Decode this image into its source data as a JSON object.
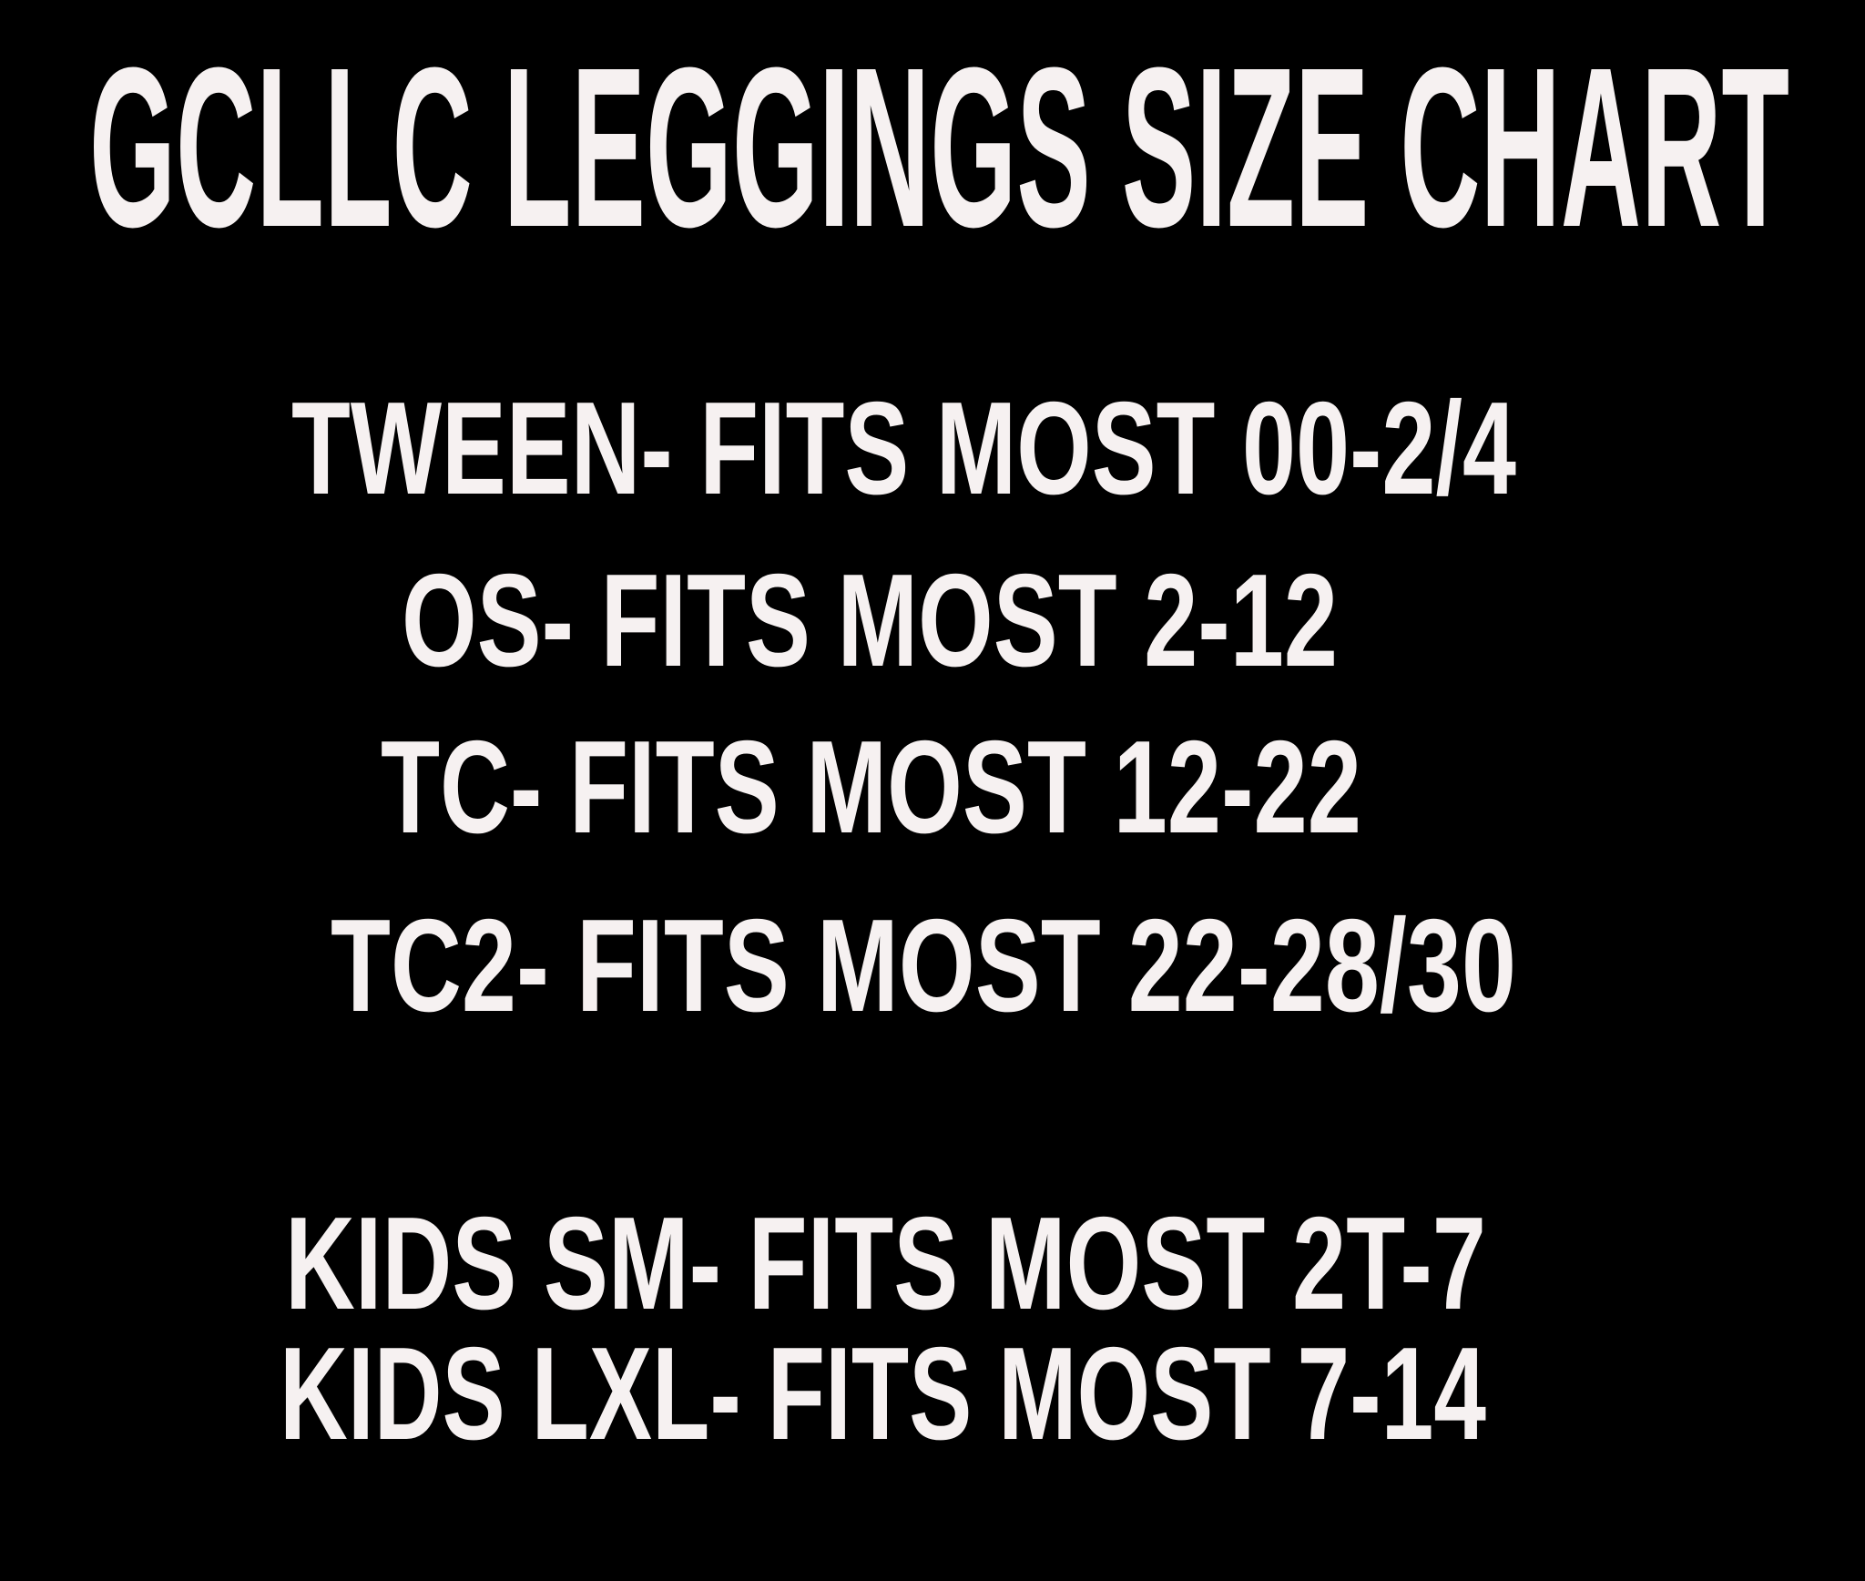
{
  "colors": {
    "background": "#000000",
    "text": "#f6f1f1"
  },
  "title": "GCLLC LEGGINGS SIZE CHART",
  "sizes": [
    "TWEEN- FITS MOST 00-2/4",
    "OS- FITS MOST 2-12",
    "TC- FITS MOST 12-22",
    "TC2- FITS MOST 22-28/30"
  ],
  "kids_sizes": [
    "KIDS SM- FITS MOST 2T-7",
    "KIDS LXL- FITS MOST 7-14"
  ]
}
